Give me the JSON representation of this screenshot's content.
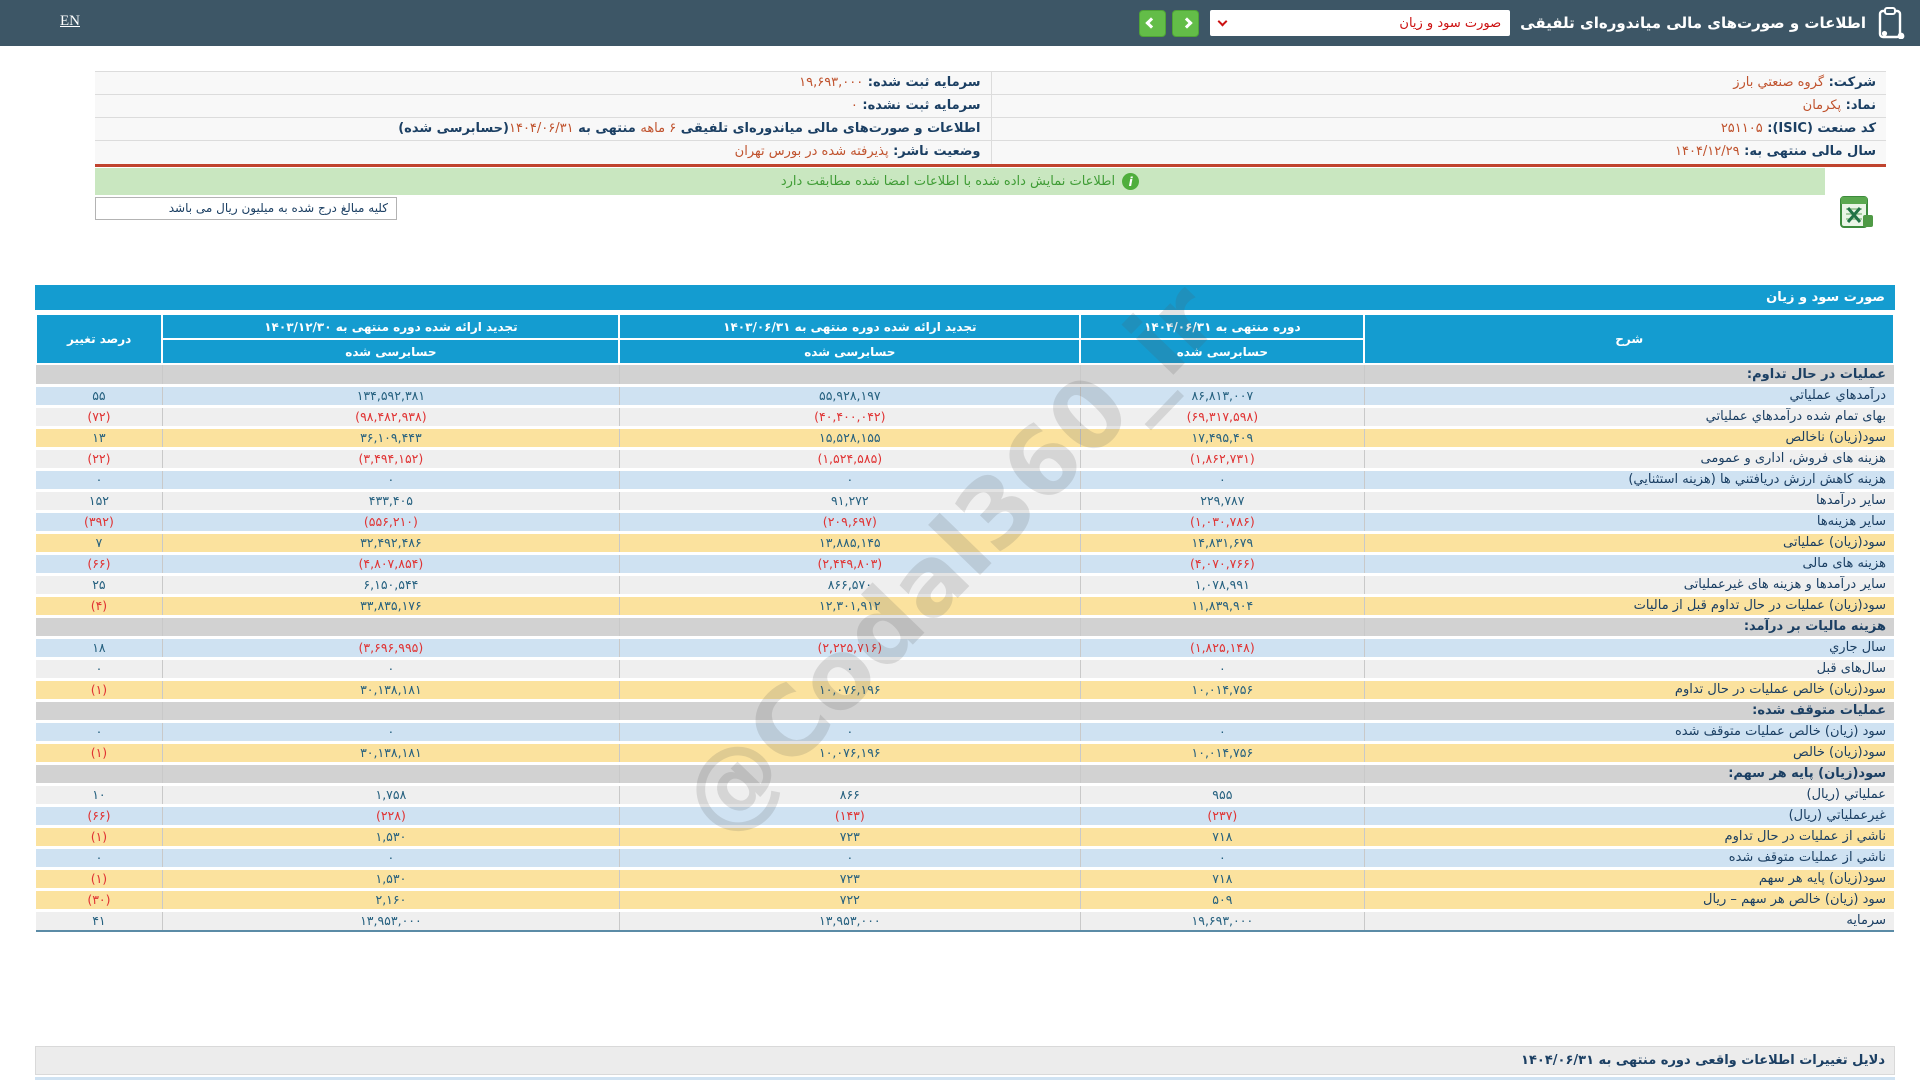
{
  "topbar": {
    "lang": "EN",
    "title": "اطلاعات و صورت‌های مالی میاندوره‌ای تلفیقی",
    "dropdown_value": "صورت سود و زیان"
  },
  "company_info": {
    "right_column": [
      [
        {
          "text": "شرکت: ",
          "cls": "lbl"
        },
        {
          "text": "گروه صنعتي بارز",
          "cls": "val"
        }
      ],
      [
        {
          "text": "نماد: ",
          "cls": "lbl"
        },
        {
          "text": "پکرمان",
          "cls": "val"
        }
      ],
      [
        {
          "text": "کد صنعت (ISIC): ",
          "cls": "lbl"
        },
        {
          "text": "۲۵۱۱۰۵",
          "cls": "val"
        }
      ],
      [
        {
          "text": "سال مالی منتهی به: ",
          "cls": "lbl"
        },
        {
          "text": "۱۴۰۴/۱۲/۲۹",
          "cls": "val"
        }
      ]
    ],
    "left_column": [
      [
        {
          "text": "سرمایه ثبت شده: ",
          "cls": "lbl"
        },
        {
          "text": "۱۹,۶۹۳,۰۰۰",
          "cls": "val"
        }
      ],
      [
        {
          "text": "سرمایه ثبت نشده: ",
          "cls": "lbl"
        },
        {
          "text": "۰",
          "cls": "val"
        }
      ],
      [
        {
          "text": "اطلاعات و صورت‌های مالی میاندوره‌ای تلفیقی ",
          "cls": "lbl"
        },
        {
          "text": "۶ ماهه",
          "cls": "val"
        },
        {
          "text": " منتهی به ",
          "cls": "lbl"
        },
        {
          "text": "۱۴۰۴/۰۶/۳۱",
          "cls": "val"
        },
        {
          "text": "(حسابرسی شده)",
          "cls": "lbl"
        }
      ],
      [
        {
          "text": "وضعیت ناشر: ",
          "cls": "lbl"
        },
        {
          "text": "پذیرفته شده در بورس تهران",
          "cls": "val"
        }
      ]
    ]
  },
  "banner": {
    "text": "اطلاعات نمایش داده شده با اطلاعات امضا شده مطابقت دارد",
    "icon": "info-icon"
  },
  "note": "کلیه مبالغ درج شده به میلیون ریال می باشد",
  "excel_icon": "excel-export-icon",
  "table": {
    "title": "صورت سود و زیان",
    "columns": {
      "desc": "شرح",
      "period_current": "دوره منتهی به ۱۴۰۴/۰۶/۳۱",
      "period_restated_1": "تجدید ارائه شده دوره منتهی به ۱۴۰۳/۰۶/۳۱",
      "period_restated_2": "تجدید ارائه شده دوره منتهی به ۱۴۰۳/۱۲/۳۰",
      "audited": "حسابرسی شده",
      "pct": "درصد تغییر"
    },
    "rows": [
      {
        "type": "section",
        "label": "عملیات در حال تداوم:"
      },
      {
        "type": "data",
        "bg": "blue",
        "label": "درآمدهاي عملياتي",
        "v1": "۸۶,۸۱۳,۰۰۷",
        "v2": "۵۵,۹۲۸,۱۹۷",
        "v3": "۱۳۴,۵۹۲,۳۸۱",
        "pct": "۵۵"
      },
      {
        "type": "data",
        "bg": "white",
        "label": "بهای تمام شده درآمدهاي عملياتي",
        "v1": "(۶۹,۳۱۷,۵۹۸)",
        "v2": "(۴۰,۴۰۰,۰۴۲)",
        "v3": "(۹۸,۴۸۲,۹۳۸)",
        "pct": "(۷۲)"
      },
      {
        "type": "data",
        "bg": "yellow",
        "label": "سود(زیان) ناخالص",
        "v1": "۱۷,۴۹۵,۴۰۹",
        "v2": "۱۵,۵۲۸,۱۵۵",
        "v3": "۳۶,۱۰۹,۴۴۳",
        "pct": "۱۳"
      },
      {
        "type": "data",
        "bg": "white",
        "label": "هزینه های فروش، اداری و عمومی",
        "v1": "(۱,۸۶۲,۷۳۱)",
        "v2": "(۱,۵۲۴,۵۸۵)",
        "v3": "(۳,۴۹۴,۱۵۲)",
        "pct": "(۲۲)"
      },
      {
        "type": "data",
        "bg": "blue",
        "label": "هزینه کاهش ارزش دریافتني ها (هزینه استثنایي)",
        "v1": "۰",
        "v2": "۰",
        "v3": "۰",
        "pct": "۰"
      },
      {
        "type": "data",
        "bg": "white",
        "label": "سایر درآمدها",
        "v1": "۲۲۹,۷۸۷",
        "v2": "۹۱,۲۷۲",
        "v3": "۴۳۳,۴۰۵",
        "pct": "۱۵۲"
      },
      {
        "type": "data",
        "bg": "blue",
        "label": "سایر هزینه‌ها",
        "v1": "(۱,۰۳۰,۷۸۶)",
        "v2": "(۲۰۹,۶۹۷)",
        "v3": "(۵۵۶,۲۱۰)",
        "pct": "(۳۹۲)"
      },
      {
        "type": "data",
        "bg": "yellow",
        "label": "سود(زیان) عملیاتی",
        "v1": "۱۴,۸۳۱,۶۷۹",
        "v2": "۱۳,۸۸۵,۱۴۵",
        "v3": "۳۲,۴۹۲,۴۸۶",
        "pct": "۷"
      },
      {
        "type": "data",
        "bg": "blue",
        "label": "هزینه های مالی",
        "v1": "(۴,۰۷۰,۷۶۶)",
        "v2": "(۲,۴۴۹,۸۰۳)",
        "v3": "(۴,۸۰۷,۸۵۴)",
        "pct": "(۶۶)"
      },
      {
        "type": "data",
        "bg": "white",
        "label": "سایر درآمدها و هزینه های غیرعملیاتی",
        "v1": "۱,۰۷۸,۹۹۱",
        "v2": "۸۶۶,۵۷۰",
        "v3": "۶,۱۵۰,۵۴۴",
        "pct": "۲۵"
      },
      {
        "type": "data",
        "bg": "yellow",
        "label": "سود(زیان) عملیات در حال تداوم قبل از مالیات",
        "v1": "۱۱,۸۳۹,۹۰۴",
        "v2": "۱۲,۳۰۱,۹۱۲",
        "v3": "۳۳,۸۳۵,۱۷۶",
        "pct": "(۴)"
      },
      {
        "type": "section",
        "label": "هزینه مالیات بر درآمد:"
      },
      {
        "type": "data",
        "bg": "blue",
        "label": "سال جاري",
        "v1": "(۱,۸۲۵,۱۴۸)",
        "v2": "(۲,۲۲۵,۷۱۶)",
        "v3": "(۳,۶۹۶,۹۹۵)",
        "pct": "۱۸"
      },
      {
        "type": "data",
        "bg": "white",
        "label": "سال‌های قبل",
        "v1": "۰",
        "v2": "۰",
        "v3": "۰",
        "pct": "۰"
      },
      {
        "type": "data",
        "bg": "yellow",
        "label": "سود(زیان) خالص عملیات در حال تداوم",
        "v1": "۱۰,۰۱۴,۷۵۶",
        "v2": "۱۰,۰۷۶,۱۹۶",
        "v3": "۳۰,۱۳۸,۱۸۱",
        "pct": "(۱)"
      },
      {
        "type": "section",
        "label": "عملیات متوقف شده:"
      },
      {
        "type": "data",
        "bg": "blue",
        "label": "سود (زیان) خالص عملیات متوقف شده",
        "v1": "۰",
        "v2": "۰",
        "v3": "۰",
        "pct": "۰"
      },
      {
        "type": "data",
        "bg": "yellow",
        "label": "سود(زیان) خالص",
        "v1": "۱۰,۰۱۴,۷۵۶",
        "v2": "۱۰,۰۷۶,۱۹۶",
        "v3": "۳۰,۱۳۸,۱۸۱",
        "pct": "(۱)"
      },
      {
        "type": "section",
        "label": "سود(زیان) پایه هر سهم:"
      },
      {
        "type": "data",
        "bg": "white",
        "label": "عملياتي (ريال)",
        "v1": "۹۵۵",
        "v2": "۸۶۶",
        "v3": "۱,۷۵۸",
        "pct": "۱۰"
      },
      {
        "type": "data",
        "bg": "blue",
        "label": "غیرعملياتي (ريال)",
        "v1": "(۲۳۷)",
        "v2": "(۱۴۳)",
        "v3": "(۲۲۸)",
        "pct": "(۶۶)"
      },
      {
        "type": "data",
        "bg": "yellow",
        "label": "ناشي از عملیات در حال تداوم",
        "v1": "۷۱۸",
        "v2": "۷۲۳",
        "v3": "۱,۵۳۰",
        "pct": "(۱)"
      },
      {
        "type": "data",
        "bg": "blue",
        "label": "ناشي از عملیات متوقف شده",
        "v1": "۰",
        "v2": "۰",
        "v3": "۰",
        "pct": "۰"
      },
      {
        "type": "data",
        "bg": "yellow",
        "label": "سود(زیان) پایه هر سهم",
        "v1": "۷۱۸",
        "v2": "۷۲۳",
        "v3": "۱,۵۳۰",
        "pct": "(۱)"
      },
      {
        "type": "data",
        "bg": "yellow",
        "label": "سود (زیان) خالص هر سهم – ریال",
        "v1": "۵۰۹",
        "v2": "۷۲۲",
        "v3": "۲,۱۶۰",
        "pct": "(۳۰)"
      },
      {
        "type": "data",
        "bg": "white",
        "label": "سرمایه",
        "v1": "۱۹,۶۹۳,۰۰۰",
        "v2": "۱۳,۹۵۳,۰۰۰",
        "v3": "۱۳,۹۵۳,۰۰۰",
        "pct": "۴۱"
      }
    ]
  },
  "footer": {
    "title": "دلایل تغییرات اطلاعات واقعی دوره منتهی به ۱۴۰۴/۰۶/۳۱"
  },
  "watermark": "@Codal360_ir",
  "colors": {
    "topbar": "#3d5666",
    "accent_cyan": "#149cd0",
    "green_button": "#63bd48",
    "banner_bg": "#c9e7c0",
    "banner_text": "#3f9c35",
    "row_blue": "#cfe2f2",
    "row_yellow": "#fbe29e",
    "row_white": "#efefef",
    "row_section": "#d2d2d2",
    "positive_value": "#25607f",
    "negative_value": "#e03333",
    "info_label": "#1b3f63",
    "info_value": "#c0532e",
    "red_divider": "#c0432e"
  }
}
